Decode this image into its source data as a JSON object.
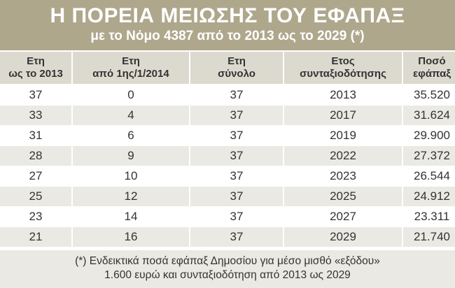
{
  "header": {
    "title": "Η ΠΟΡΕΙΑ ΜΕΙΩΣΗΣ ΤΟΥ ΕΦΑΠΑΞ",
    "subtitle": "με το Νόμο 4387 από το 2013 ως το 2029 (*)"
  },
  "table": {
    "columns": [
      [
        "Ετη",
        "ως το 2013"
      ],
      [
        "Ετη",
        "από 1ης/1/2014"
      ],
      [
        "Ετη",
        "σύνολο"
      ],
      [
        "Ετος",
        "συνταξιοδότησης"
      ],
      [
        "Ποσό",
        "εφάπαξ"
      ]
    ],
    "rows": [
      [
        "37",
        "0",
        "37",
        "2013",
        "35.520"
      ],
      [
        "33",
        "4",
        "37",
        "2017",
        "31.624"
      ],
      [
        "31",
        "6",
        "37",
        "2019",
        "29.900"
      ],
      [
        "28",
        "9",
        "37",
        "2022",
        "27.372"
      ],
      [
        "27",
        "10",
        "37",
        "2023",
        "26.544"
      ],
      [
        "25",
        "12",
        "37",
        "2025",
        "24.912"
      ],
      [
        "23",
        "14",
        "37",
        "2027",
        "23.311"
      ],
      [
        "21",
        "16",
        "37",
        "2029",
        "21.740"
      ]
    ]
  },
  "footnote": [
    "(*) Ενδεικτικά ποσά εφάπαξ Δημοσίου για μέσο μισθό «εξόδου»",
    "1.600 ευρώ και συνταξιοδότηση από 2013 ως 2029"
  ]
}
